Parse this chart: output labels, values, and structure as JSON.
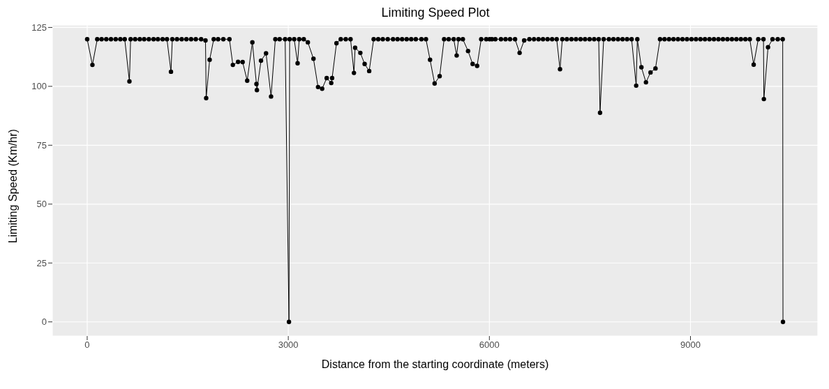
{
  "chart_data": {
    "type": "line",
    "title": "Limiting Speed Plot",
    "xlabel": "Distance from the starting coordinate (meters)",
    "ylabel": "Limiting Speed (Km/hr)",
    "xlim": [
      -520,
      10900
    ],
    "xticks": [
      0,
      3000,
      6000,
      9000
    ],
    "ylim": [
      -6,
      126
    ],
    "yticks": [
      0,
      25,
      50,
      75,
      100,
      125
    ],
    "grid": true,
    "marker": "circle",
    "line_style": "solid",
    "series": [
      {
        "color": "#000000",
        "x": [
          0,
          78,
          150,
          215,
          285,
          355,
          425,
          495,
          560,
          630,
          648,
          715,
          785,
          850,
          920,
          990,
          1055,
          1125,
          1190,
          1250,
          1270,
          1340,
          1410,
          1480,
          1550,
          1620,
          1700,
          1765,
          1775,
          1827,
          1888,
          1953,
          2031,
          2122,
          2173,
          2251,
          2319,
          2387,
          2464,
          2525,
          2532,
          2593,
          2668,
          2743,
          2807,
          2871,
          2953,
          3010,
          3020,
          3088,
          3139,
          3163,
          3231,
          3292,
          3376,
          3444,
          3505,
          3573,
          3641,
          3654,
          3719,
          3783,
          3857,
          3929,
          3980,
          3997,
          4075,
          4139,
          4207,
          4274,
          4342,
          4410,
          4484,
          4563,
          4630,
          4698,
          4766,
          4834,
          4902,
          4986,
          5054,
          5115,
          5183,
          5258,
          5325,
          5393,
          5468,
          5512,
          5539,
          5604,
          5682,
          5750,
          5817,
          5878,
          5953,
          6004,
          6038,
          6089,
          6173,
          6241,
          6308,
          6383,
          6451,
          6519,
          6597,
          6665,
          6733,
          6800,
          6868,
          6936,
          7004,
          7054,
          7088,
          7156,
          7224,
          7292,
          7360,
          7427,
          7495,
          7563,
          7631,
          7651,
          7705,
          7783,
          7851,
          7919,
          7987,
          8054,
          8122,
          8190,
          8207,
          8268,
          8336,
          8404,
          8478,
          8546,
          8613,
          8680,
          8747,
          8814,
          8881,
          8948,
          9015,
          9082,
          9149,
          9216,
          9283,
          9350,
          9417,
          9484,
          9551,
          9618,
          9685,
          9752,
          9819,
          9885,
          9943,
          10011,
          10089,
          10095,
          10157,
          10224,
          10302,
          10376,
          10380
        ],
        "values": [
          120,
          109.1,
          120,
          120,
          120,
          120,
          120,
          120,
          120,
          102.1,
          120,
          120,
          120,
          120,
          120,
          120,
          120,
          120,
          120,
          106.2,
          120,
          120,
          120,
          120,
          120,
          120,
          120,
          119.5,
          95.0,
          111.3,
          120,
          120,
          120,
          120,
          109.1,
          110.4,
          110.3,
          102.4,
          118.7,
          101,
          98.4,
          110.9,
          114,
          95.7,
          120,
          120,
          120,
          0,
          120,
          120,
          109.8,
          120,
          120,
          118.7,
          111.7,
          99.7,
          99.0,
          103.5,
          101.4,
          103.5,
          118.3,
          120,
          120,
          120,
          105.7,
          116.4,
          114.2,
          109.5,
          106.5,
          120,
          120,
          120,
          120,
          120,
          120,
          120,
          120,
          120,
          120,
          120,
          120,
          111.3,
          101.2,
          104.3,
          120,
          120,
          120,
          113.1,
          120,
          120,
          115,
          109.5,
          108.7,
          120,
          120,
          120,
          120,
          120,
          120,
          120,
          120,
          120,
          114.2,
          119.5,
          120,
          120,
          120,
          120,
          120,
          120,
          120,
          107.3,
          120,
          120,
          120,
          120,
          120,
          120,
          120,
          120,
          120,
          88.8,
          120,
          120,
          120,
          120,
          120,
          120,
          120,
          100.3,
          120,
          108.1,
          101.7,
          105.9,
          107.6,
          120,
          120,
          120,
          120,
          120,
          120,
          120,
          120,
          120,
          120,
          120,
          120,
          120,
          120,
          120,
          120,
          120,
          120,
          120,
          120,
          120,
          109.2,
          120,
          120,
          94.6,
          116.6,
          120,
          120,
          120,
          0
        ]
      }
    ]
  }
}
